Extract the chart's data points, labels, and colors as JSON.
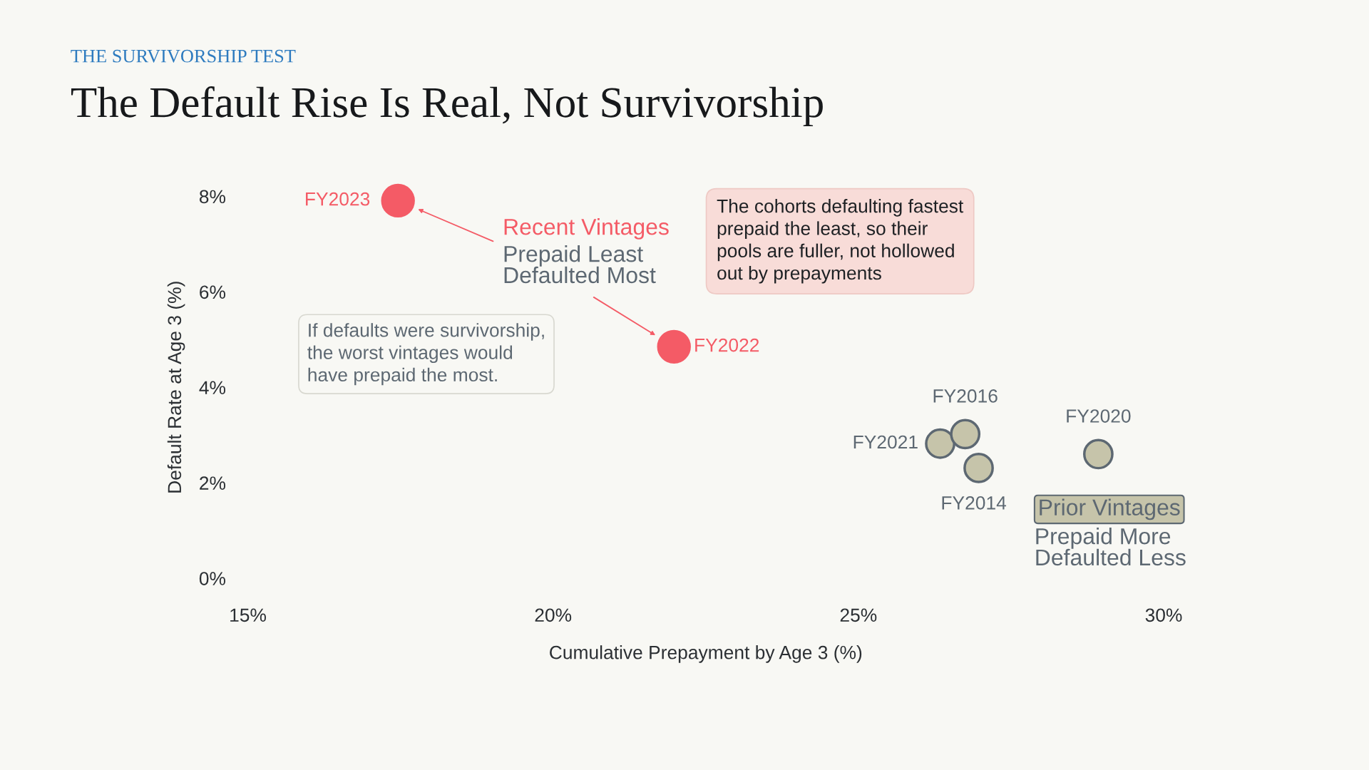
{
  "chart_data": {
    "type": "scatter",
    "title": "The Default Rise Is Real, Not Survivorship",
    "subtitle": "THE SURVIVORSHIP TEST",
    "xlabel": "Cumulative Prepayment by Age 3 (%)",
    "ylabel": "Default Rate at Age 3 (%)",
    "xlim": [
      15,
      30
    ],
    "ylim": [
      0,
      8
    ],
    "xticks": [
      {
        "value": 15,
        "label": "15%"
      },
      {
        "value": 20,
        "label": "20%"
      },
      {
        "value": 25,
        "label": "25%"
      },
      {
        "value": 30,
        "label": "30%"
      }
    ],
    "yticks": [
      {
        "value": 0,
        "label": "0%"
      },
      {
        "value": 2,
        "label": "2%"
      },
      {
        "value": 4,
        "label": "4%"
      },
      {
        "value": 6,
        "label": "6%"
      },
      {
        "value": 8,
        "label": "8%"
      }
    ],
    "grid": false,
    "marker": "circle",
    "series": [
      {
        "color": "#f45b66",
        "x": [
          17.46,
          21.98
        ],
        "values": [
          7.91,
          4.85
        ]
      },
      {
        "color": "#c6c4aa",
        "x": [
          26.34,
          26.75,
          26.97,
          28.93
        ],
        "values": [
          2.82,
          3.02,
          2.31,
          2.6
        ]
      }
    ],
    "annotations": [
      {
        "text": "FY2023",
        "x": 17.46,
        "y": 7.91
      },
      {
        "text": "FY2022",
        "x": 21.98,
        "y": 4.85
      },
      {
        "text": "FY2021",
        "x": 26.34,
        "y": 2.82
      },
      {
        "text": "FY2016",
        "x": 26.75,
        "y": 3.02
      },
      {
        "text": "FY2014",
        "x": 26.97,
        "y": 2.31
      },
      {
        "text": "FY2020",
        "x": 28.93,
        "y": 2.6
      },
      "Recent Vintages",
      "Prepaid Least\nDefaulted Most",
      "Prior Vintages",
      "Prepaid More\nDefaulted Less",
      "If defaults were survivorship,\nthe worst vintages would\nhave prepaid the most.",
      "The cohorts defaulting fastest\nprepaid the least, so their\npools are fuller, not hollowed\nout by prepayments"
    ]
  }
}
